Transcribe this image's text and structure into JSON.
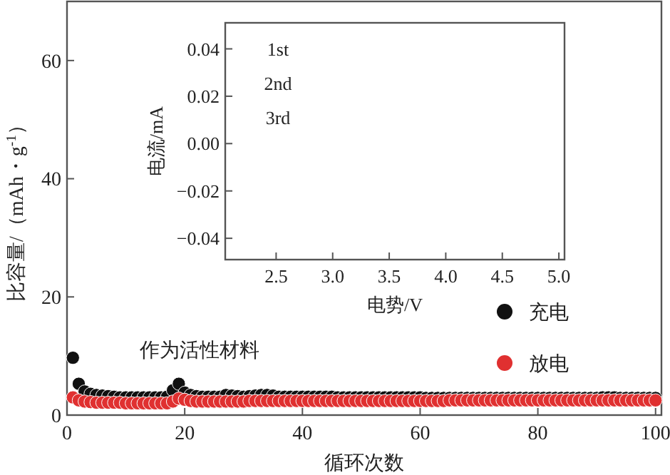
{
  "chart_data": [
    {
      "type": "scatter",
      "xlabel": "循环次数",
      "ylabel": "比容量/（mAh・g$^{-1}$）",
      "xlim": [
        0,
        101
      ],
      "ylim": [
        0,
        70
      ],
      "xticks": [
        0,
        20,
        40,
        60,
        80,
        100
      ],
      "yticks": [
        0,
        20,
        40,
        60
      ],
      "marker": "circle",
      "legend": "right",
      "annotations": [
        "作为活性材料"
      ],
      "x": [
        1,
        2,
        3,
        4,
        5,
        6,
        7,
        8,
        9,
        10,
        11,
        12,
        13,
        14,
        15,
        16,
        17,
        18,
        19,
        20,
        21,
        22,
        23,
        24,
        25,
        26,
        27,
        28,
        29,
        30,
        31,
        32,
        33,
        34,
        35,
        36,
        37,
        38,
        39,
        40,
        41,
        42,
        43,
        44,
        45,
        46,
        47,
        48,
        49,
        50,
        51,
        52,
        53,
        54,
        55,
        56,
        57,
        58,
        59,
        60,
        61,
        62,
        63,
        64,
        65,
        66,
        67,
        68,
        69,
        70,
        71,
        72,
        73,
        74,
        75,
        76,
        77,
        78,
        79,
        80,
        81,
        82,
        83,
        84,
        85,
        86,
        87,
        88,
        89,
        90,
        91,
        92,
        93,
        94,
        95,
        96,
        97,
        98,
        99,
        100
      ],
      "series": [
        {
          "name": "充电",
          "color": "#111111",
          "values": [
            9.7,
            5.3,
            4.0,
            3.6,
            3.4,
            3.3,
            3.2,
            3.1,
            3.0,
            3.0,
            3.0,
            3.0,
            3.0,
            3.0,
            3.0,
            3.0,
            3.1,
            4.2,
            5.3,
            3.8,
            3.4,
            3.2,
            3.1,
            3.1,
            3.1,
            3.1,
            3.4,
            3.3,
            3.2,
            3.1,
            3.2,
            3.3,
            3.4,
            3.4,
            3.3,
            3.1,
            3.1,
            3.1,
            3.1,
            3.1,
            3.1,
            3.1,
            3.1,
            3.1,
            3.1,
            3.0,
            3.0,
            3.0,
            3.0,
            3.0,
            3.0,
            3.0,
            3.0,
            3.0,
            3.0,
            3.0,
            3.0,
            3.0,
            3.0,
            3.0,
            2.9,
            2.9,
            2.9,
            2.9,
            2.9,
            2.9,
            2.9,
            2.9,
            2.9,
            2.9,
            2.9,
            2.9,
            2.9,
            2.9,
            2.9,
            2.9,
            2.9,
            2.9,
            2.9,
            2.9,
            2.9,
            2.9,
            2.9,
            2.9,
            2.9,
            2.9,
            2.9,
            2.9,
            2.9,
            2.9,
            3.0,
            3.0,
            3.0,
            2.9,
            2.9,
            2.9,
            2.9,
            2.9,
            2.9,
            2.9
          ]
        },
        {
          "name": "放电",
          "color": "#e03030",
          "values": [
            3.0,
            2.5,
            2.3,
            2.2,
            2.1,
            2.1,
            2.1,
            2.1,
            2.1,
            2.0,
            2.0,
            2.0,
            2.0,
            2.0,
            2.0,
            2.0,
            2.0,
            2.3,
            2.8,
            2.6,
            2.4,
            2.3,
            2.3,
            2.3,
            2.3,
            2.3,
            2.3,
            2.3,
            2.3,
            2.3,
            2.4,
            2.4,
            2.4,
            2.4,
            2.4,
            2.4,
            2.4,
            2.4,
            2.4,
            2.4,
            2.4,
            2.4,
            2.4,
            2.4,
            2.4,
            2.4,
            2.4,
            2.4,
            2.4,
            2.4,
            2.4,
            2.4,
            2.4,
            2.4,
            2.4,
            2.4,
            2.4,
            2.4,
            2.4,
            2.4,
            2.4,
            2.4,
            2.4,
            2.4,
            2.5,
            2.5,
            2.5,
            2.5,
            2.5,
            2.5,
            2.5,
            2.5,
            2.5,
            2.5,
            2.5,
            2.5,
            2.5,
            2.5,
            2.5,
            2.5,
            2.5,
            2.5,
            2.5,
            2.5,
            2.5,
            2.5,
            2.5,
            2.5,
            2.5,
            2.5,
            2.5,
            2.5,
            2.5,
            2.5,
            2.5,
            2.5,
            2.5,
            2.5,
            2.5,
            2.5
          ]
        }
      ]
    },
    {
      "type": "line",
      "xlabel": "电势/V",
      "ylabel": "电流/mA",
      "xlim": [
        2.05,
        5.05
      ],
      "ylim": [
        -0.049,
        0.051
      ],
      "xticks": [
        2.5,
        {
          "value": 3,
          "label": "3.0"
        },
        3.5,
        {
          "value": 4,
          "label": "4.0"
        },
        4.5,
        {
          "value": 5,
          "label": "5.0"
        }
      ],
      "yticks": [
        -0.04,
        -0.02,
        {
          "value": 0,
          "label": "0.00"
        },
        0.02,
        0.04
      ],
      "annotations": [
        "1st",
        "2nd",
        "3rd"
      ]
    }
  ]
}
